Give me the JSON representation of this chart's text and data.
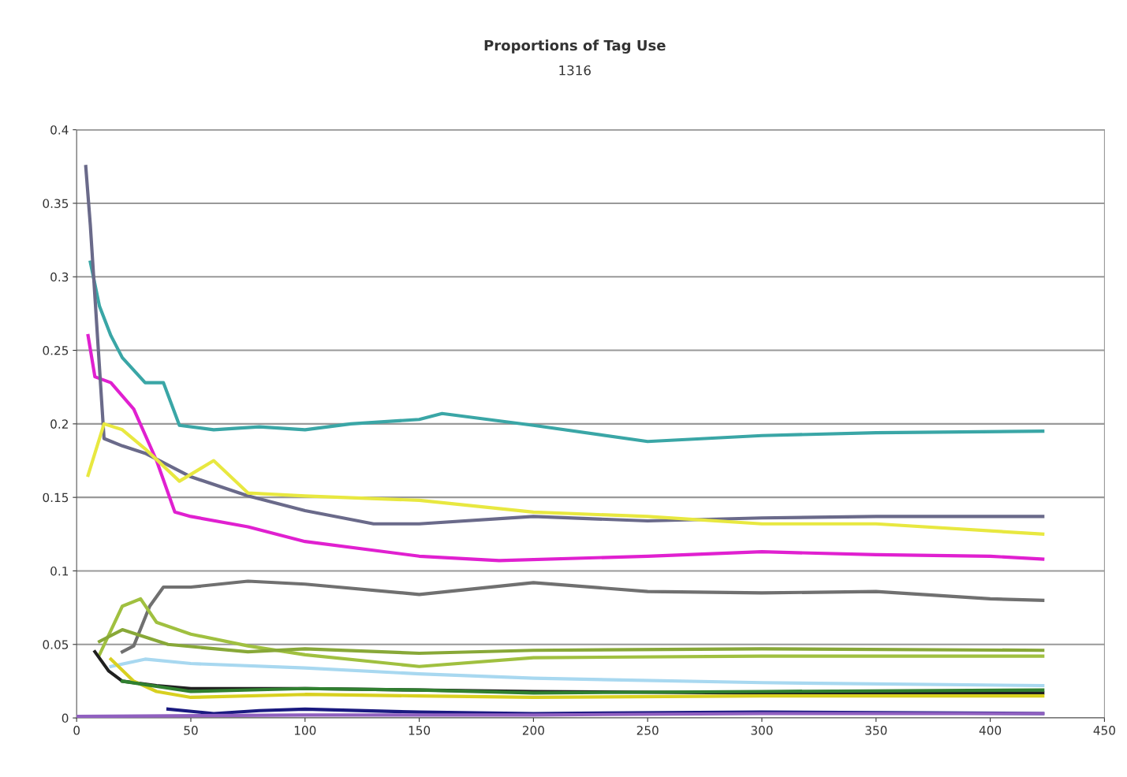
{
  "chart_data": {
    "type": "line",
    "title": "Proportions of Tag Use",
    "subtitle": "1316",
    "xlim": [
      0,
      450
    ],
    "xticks": [
      0,
      50,
      100,
      150,
      200,
      250,
      300,
      350,
      400,
      450
    ],
    "ylim": [
      0,
      0.4
    ],
    "yticks": [
      0,
      0.05,
      0.1,
      0.15,
      0.2,
      0.25,
      0.3,
      0.35,
      0.4
    ],
    "grid": "y",
    "legend": false,
    "line_style": "solid",
    "series": [
      {
        "color": "#3aa6a6",
        "x": [
          6,
          10,
          15,
          20,
          30,
          38,
          45,
          60,
          80,
          100,
          120,
          150,
          160,
          200,
          250,
          300,
          350,
          423
        ],
        "values": [
          0.31,
          0.28,
          0.26,
          0.245,
          0.228,
          0.228,
          0.199,
          0.196,
          0.198,
          0.196,
          0.2,
          0.203,
          0.207,
          0.199,
          0.188,
          0.192,
          0.194,
          0.195
        ]
      },
      {
        "color": "#e020d0",
        "x": [
          5,
          8,
          15,
          25,
          35,
          43,
          50,
          75,
          100,
          150,
          185,
          250,
          300,
          350,
          400,
          423
        ],
        "values": [
          0.26,
          0.232,
          0.228,
          0.21,
          0.175,
          0.14,
          0.137,
          0.13,
          0.12,
          0.11,
          0.107,
          0.11,
          0.113,
          0.111,
          0.11,
          0.108
        ]
      },
      {
        "color": "#6a6a8a",
        "x": [
          4,
          6,
          12,
          20,
          30,
          50,
          75,
          100,
          130,
          150,
          200,
          250,
          300,
          350,
          423
        ],
        "values": [
          0.375,
          0.335,
          0.19,
          0.185,
          0.18,
          0.164,
          0.151,
          0.141,
          0.132,
          0.132,
          0.137,
          0.134,
          0.136,
          0.137,
          0.137
        ]
      },
      {
        "color": "#e8e840",
        "x": [
          5,
          12,
          20,
          30,
          45,
          60,
          75,
          100,
          150,
          200,
          250,
          300,
          350,
          423
        ],
        "values": [
          0.165,
          0.2,
          0.196,
          0.183,
          0.161,
          0.175,
          0.153,
          0.151,
          0.148,
          0.14,
          0.137,
          0.132,
          0.132,
          0.125
        ]
      },
      {
        "color": "#707070",
        "x": [
          20,
          25,
          32,
          38,
          50,
          75,
          100,
          150,
          200,
          250,
          300,
          350,
          400,
          423
        ],
        "values": [
          0.045,
          0.049,
          0.076,
          0.089,
          0.089,
          0.093,
          0.091,
          0.084,
          0.092,
          0.086,
          0.085,
          0.086,
          0.081,
          0.08
        ]
      },
      {
        "color": "#a0c040",
        "x": [
          10,
          20,
          28,
          35,
          50,
          75,
          100,
          150,
          200,
          300,
          423
        ],
        "values": [
          0.043,
          0.076,
          0.081,
          0.065,
          0.057,
          0.049,
          0.043,
          0.035,
          0.041,
          0.042,
          0.042
        ]
      },
      {
        "color": "#88a838",
        "x": [
          10,
          20,
          40,
          75,
          100,
          150,
          200,
          300,
          423
        ],
        "values": [
          0.052,
          0.06,
          0.05,
          0.045,
          0.047,
          0.044,
          0.046,
          0.047,
          0.046
        ]
      },
      {
        "color": "#a8d8f0",
        "x": [
          15,
          30,
          50,
          100,
          150,
          200,
          300,
          423
        ],
        "values": [
          0.035,
          0.04,
          0.037,
          0.034,
          0.03,
          0.027,
          0.024,
          0.022
        ]
      },
      {
        "color": "#202020",
        "x": [
          8,
          14,
          20,
          35,
          50,
          100,
          150,
          200,
          300,
          423
        ],
        "values": [
          0.045,
          0.032,
          0.025,
          0.022,
          0.02,
          0.02,
          0.019,
          0.018,
          0.017,
          0.017
        ]
      },
      {
        "color": "#d8d020",
        "x": [
          15,
          25,
          35,
          50,
          100,
          150,
          200,
          300,
          423
        ],
        "values": [
          0.04,
          0.025,
          0.018,
          0.014,
          0.016,
          0.015,
          0.014,
          0.015,
          0.015
        ]
      },
      {
        "color": "#308030",
        "x": [
          20,
          50,
          100,
          150,
          200,
          300,
          423
        ],
        "values": [
          0.025,
          0.018,
          0.02,
          0.019,
          0.017,
          0.018,
          0.019
        ]
      },
      {
        "color": "#1a1a80",
        "x": [
          40,
          60,
          80,
          100,
          150,
          200,
          300,
          423
        ],
        "values": [
          0.006,
          0.003,
          0.005,
          0.006,
          0.004,
          0.003,
          0.004,
          0.003
        ]
      },
      {
        "color": "#9060c0",
        "x": [
          0,
          100,
          200,
          300,
          423
        ],
        "values": [
          0.001,
          0.002,
          0.002,
          0.003,
          0.003
        ]
      }
    ]
  }
}
